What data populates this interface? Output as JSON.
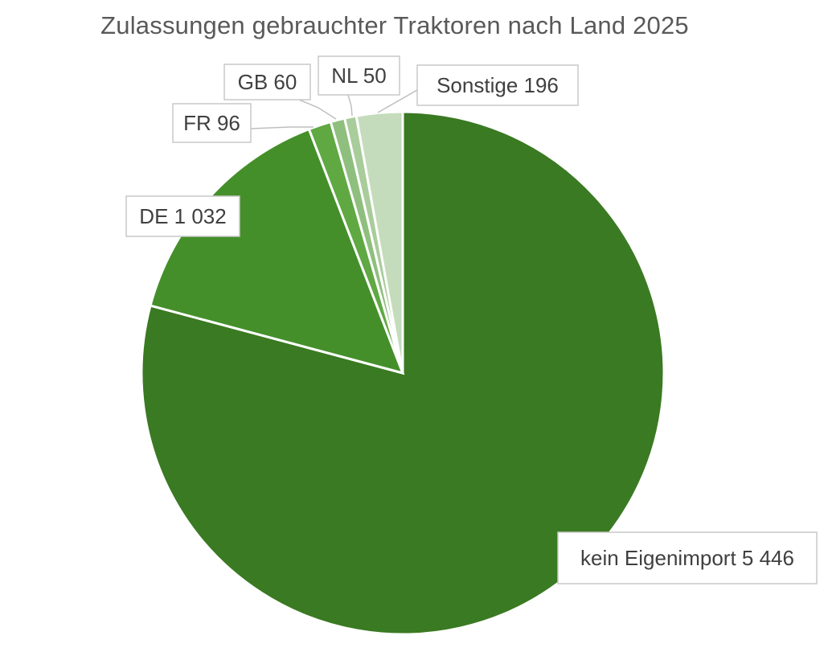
{
  "chart_data": {
    "type": "pie",
    "title": "Zulassungen gebrauchter Traktoren nach Land 2025",
    "categories": [
      "kein Eigenimport",
      "DE",
      "FR",
      "GB",
      "NL",
      "Sonstige"
    ],
    "values": [
      5446,
      1032,
      96,
      60,
      50,
      196
    ],
    "value_labels": [
      "5 446",
      "1 032",
      "96",
      "60",
      "50",
      "196"
    ],
    "colors": [
      "#3a7a22",
      "#448f2a",
      "#5fa842",
      "#8fbf7e",
      "#a8cc9a",
      "#c4dcbb"
    ],
    "start_angle_deg": 0,
    "direction": "clockwise",
    "legend": "none",
    "data_labels": "outside-callout"
  }
}
